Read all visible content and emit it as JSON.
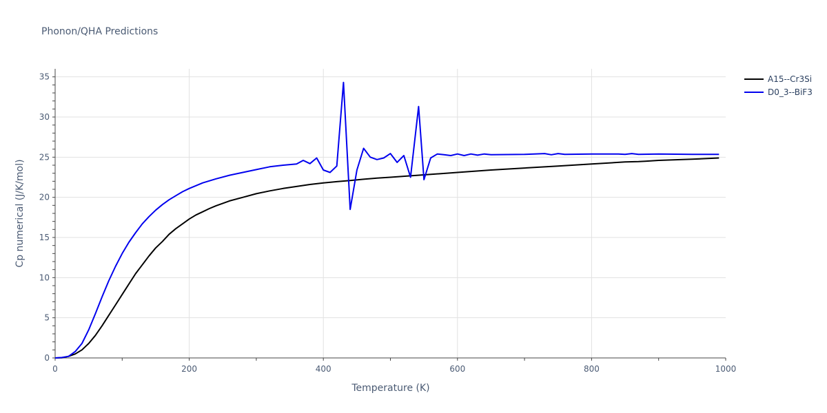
{
  "chart_data": {
    "type": "line",
    "title": "Phonon/QHA Predictions",
    "xlabel": "Temperature (K)",
    "ylabel": "Cp numerical (J/K/mol)",
    "xlim": [
      0,
      1000
    ],
    "ylim": [
      0,
      36
    ],
    "xticks": [
      0,
      200,
      400,
      600,
      800,
      1000
    ],
    "yticks": [
      0,
      5,
      10,
      15,
      20,
      25,
      30,
      35
    ],
    "grid": true,
    "legend_position": "top-right",
    "series": [
      {
        "name": "A15--Cr3Si",
        "color": "#000000",
        "x": [
          0,
          10,
          20,
          30,
          40,
          50,
          60,
          70,
          80,
          90,
          100,
          110,
          120,
          130,
          140,
          150,
          160,
          170,
          180,
          190,
          200,
          210,
          220,
          230,
          240,
          250,
          260,
          280,
          300,
          320,
          340,
          360,
          380,
          400,
          420,
          440,
          460,
          480,
          500,
          550,
          600,
          650,
          700,
          750,
          800,
          850,
          870,
          880,
          900,
          950,
          990
        ],
        "y": [
          0,
          0.02,
          0.2,
          0.5,
          1.0,
          1.8,
          2.8,
          4.0,
          5.3,
          6.6,
          7.9,
          9.2,
          10.5,
          11.6,
          12.7,
          13.7,
          14.5,
          15.4,
          16.1,
          16.7,
          17.3,
          17.8,
          18.2,
          18.6,
          18.95,
          19.25,
          19.55,
          20.0,
          20.45,
          20.8,
          21.1,
          21.35,
          21.6,
          21.8,
          21.95,
          22.1,
          22.25,
          22.4,
          22.5,
          22.8,
          23.1,
          23.4,
          23.65,
          23.9,
          24.15,
          24.4,
          24.45,
          24.5,
          24.6,
          24.75,
          24.9
        ]
      },
      {
        "name": "D0_3--BiF3",
        "color": "#0000ee",
        "x": [
          0,
          10,
          20,
          30,
          40,
          50,
          60,
          70,
          80,
          90,
          100,
          110,
          120,
          130,
          140,
          150,
          160,
          170,
          180,
          190,
          200,
          220,
          240,
          260,
          280,
          300,
          320,
          340,
          360,
          370,
          380,
          390,
          400,
          410,
          420,
          430,
          440,
          450,
          460,
          470,
          480,
          490,
          500,
          510,
          520,
          530,
          542,
          550,
          560,
          570,
          580,
          590,
          600,
          610,
          620,
          630,
          640,
          650,
          700,
          730,
          740,
          750,
          760,
          800,
          840,
          850,
          860,
          870,
          900,
          950,
          990
        ],
        "y": [
          0,
          0.05,
          0.2,
          0.8,
          1.8,
          3.5,
          5.5,
          7.6,
          9.6,
          11.4,
          13.0,
          14.4,
          15.6,
          16.7,
          17.6,
          18.4,
          19.1,
          19.7,
          20.2,
          20.7,
          21.1,
          21.8,
          22.3,
          22.75,
          23.1,
          23.45,
          23.8,
          24.0,
          24.15,
          24.6,
          24.2,
          24.9,
          23.4,
          23.1,
          23.9,
          34.3,
          18.5,
          23.4,
          26.1,
          25.0,
          24.7,
          24.9,
          25.45,
          24.35,
          25.2,
          22.5,
          31.3,
          22.2,
          24.9,
          25.4,
          25.3,
          25.2,
          25.4,
          25.2,
          25.4,
          25.25,
          25.4,
          25.3,
          25.35,
          25.45,
          25.3,
          25.45,
          25.35,
          25.4,
          25.4,
          25.35,
          25.45,
          25.35,
          25.4,
          25.35,
          25.35
        ]
      }
    ]
  }
}
